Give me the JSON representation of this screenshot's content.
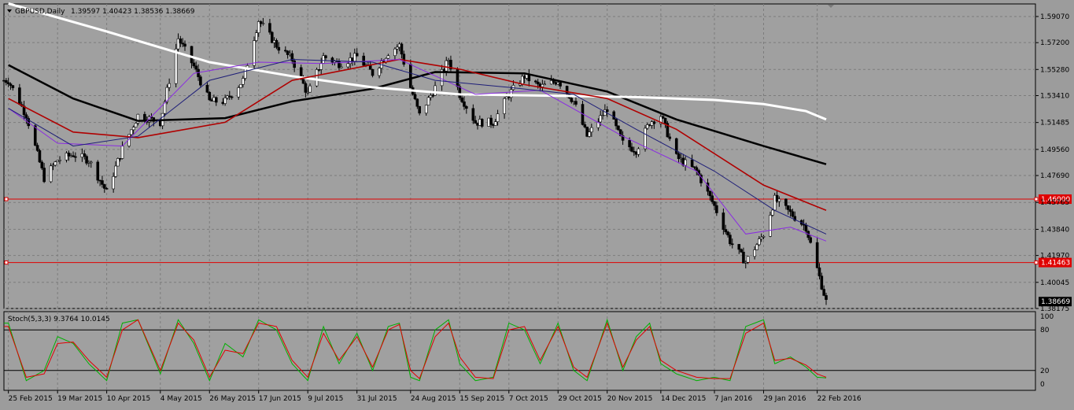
{
  "main_header": {
    "symbol": "GBPUSD,Daily",
    "ohlc": "1.39597 1.40423 1.38536 1.38669"
  },
  "sub_header": {
    "label": "Stoch(5,3,3) 9.3764 10.0145"
  },
  "colors": {
    "background": "#a0a0a0",
    "grid": "#7c7c7c",
    "candle": "#000000",
    "ma_black": "#000000",
    "ma_white": "#ffffff",
    "ma_red": "#b00000",
    "ma_purple": "#8a2be2",
    "ma_blue": "#1e1e78",
    "hline": "#e00000",
    "stoch_main": "#00b000",
    "stoch_signal": "#e00000"
  },
  "chart_data": [
    {
      "type": "candlestick",
      "title": "GBPUSD,Daily",
      "ylim": [
        1.38175,
        1.5997
      ],
      "y_ticks": [
        "1.59070",
        "1.57200",
        "1.55280",
        "1.53410",
        "1.51485",
        "1.49560",
        "1.47690",
        "1.45765",
        "1.43840",
        "1.41970",
        "1.40045",
        "1.38175"
      ],
      "x_ticks": [
        "25 Feb 2015",
        "19 Mar 2015",
        "10 Apr 2015",
        "4 May 2015",
        "26 May 2015",
        "17 Jun 2015",
        "9 Jul 2015",
        "31 Jul 2015",
        "24 Aug 2015",
        "15 Sep 2015",
        "7 Oct 2015",
        "29 Oct 2015",
        "20 Nov 2015",
        "14 Dec 2015",
        "7 Jan 2016",
        "29 Jan 2016",
        "22 Feb 2016"
      ],
      "close_anchors": [
        [
          "25 Feb 2015",
          1.545
        ],
        [
          "5 Mar 2015",
          1.52
        ],
        [
          "13 Mar 2015",
          1.475
        ],
        [
          "19 Mar 2015",
          1.488
        ],
        [
          "26 Mar 2015",
          1.492
        ],
        [
          "2 Apr 2015",
          1.488
        ],
        [
          "10 Apr 2015",
          1.465
        ],
        [
          "17 Apr 2015",
          1.496
        ],
        [
          "24 Apr 2015",
          1.52
        ],
        [
          "4 May 2015",
          1.515
        ],
        [
          "12 May 2015",
          1.575
        ],
        [
          "19 May 2015",
          1.555
        ],
        [
          "26 May 2015",
          1.53
        ],
        [
          "2 Jun 2015",
          1.53
        ],
        [
          "10 Jun 2015",
          1.545
        ],
        [
          "17 Jun 2015",
          1.588
        ],
        [
          "25 Jun 2015",
          1.57
        ],
        [
          "2 Jul 2015",
          1.56
        ],
        [
          "9 Jul 2015",
          1.535
        ],
        [
          "16 Jul 2015",
          1.562
        ],
        [
          "23 Jul 2015",
          1.557
        ],
        [
          "31 Jul 2015",
          1.562
        ],
        [
          "7 Aug 2015",
          1.55
        ],
        [
          "14 Aug 2015",
          1.565
        ],
        [
          "19 Aug 2015",
          1.57
        ],
        [
          "24 Aug 2015",
          1.54
        ],
        [
          "28 Aug 2015",
          1.52
        ],
        [
          "4 Sep 2015",
          1.54
        ],
        [
          "10 Sep 2015",
          1.56
        ],
        [
          "15 Sep 2015",
          1.535
        ],
        [
          "22 Sep 2015",
          1.515
        ],
        [
          "30 Sep 2015",
          1.515
        ],
        [
          "7 Oct 2015",
          1.535
        ],
        [
          "14 Oct 2015",
          1.548
        ],
        [
          "21 Oct 2015",
          1.54
        ],
        [
          "29 Oct 2015",
          1.545
        ],
        [
          "5 Nov 2015",
          1.53
        ],
        [
          "11 Nov 2015",
          1.505
        ],
        [
          "20 Nov 2015",
          1.525
        ],
        [
          "27 Nov 2015",
          1.5
        ],
        [
          "3 Dec 2015",
          1.495
        ],
        [
          "9 Dec 2015",
          1.515
        ],
        [
          "14 Dec 2015",
          1.52
        ],
        [
          "21 Dec 2015",
          1.49
        ],
        [
          "30 Dec 2015",
          1.48
        ],
        [
          "7 Jan 2016",
          1.455
        ],
        [
          "14 Jan 2016",
          1.43
        ],
        [
          "21 Jan 2016",
          1.415
        ],
        [
          "29 Jan 2016",
          1.435
        ],
        [
          "3 Feb 2016",
          1.46
        ],
        [
          "10 Feb 2016",
          1.45
        ],
        [
          "17 Feb 2016",
          1.44
        ],
        [
          "22 Feb 2016",
          1.41
        ],
        [
          "26 Feb 2016",
          1.3867
        ]
      ],
      "lines": [
        {
          "name": "MA black",
          "color": "#000000",
          "points": [
            [
              "25 Feb 2015",
              1.556
            ],
            [
              "26 Mar 2015",
              1.532
            ],
            [
              "24 Apr 2015",
              1.516
            ],
            [
              "2 Jun 2015",
              1.518
            ],
            [
              "2 Jul 2015",
              1.53
            ],
            [
              "7 Aug 2015",
              1.539
            ],
            [
              "4 Sep 2015",
              1.551
            ],
            [
              "14 Oct 2015",
              1.55
            ],
            [
              "20 Nov 2015",
              1.537
            ],
            [
              "21 Dec 2015",
              1.517
            ],
            [
              "29 Jan 2016",
              1.498
            ],
            [
              "26 Feb 2016",
              1.485
            ]
          ]
        },
        {
          "name": "MA white",
          "color": "#ffffff",
          "points": [
            [
              "25 Feb 2015",
              1.6
            ],
            [
              "10 Apr 2015",
              1.58
            ],
            [
              "26 May 2015",
              1.558
            ],
            [
              "2 Jul 2015",
              1.548
            ],
            [
              "7 Aug 2015",
              1.54
            ],
            [
              "15 Sep 2015",
              1.535
            ],
            [
              "29 Oct 2015",
              1.534
            ],
            [
              "3 Dec 2015",
              1.533
            ],
            [
              "7 Jan 2016",
              1.531
            ],
            [
              "29 Jan 2016",
              1.528
            ],
            [
              "17 Feb 2016",
              1.523
            ],
            [
              "26 Feb 2016",
              1.517
            ]
          ]
        },
        {
          "name": "MA red",
          "color": "#b00000",
          "points": [
            [
              "25 Feb 2015",
              1.532
            ],
            [
              "26 Mar 2015",
              1.508
            ],
            [
              "24 Apr 2015",
              1.504
            ],
            [
              "2 Jun 2015",
              1.515
            ],
            [
              "2 Jul 2015",
              1.545
            ],
            [
              "19 Aug 2015",
              1.56
            ],
            [
              "15 Sep 2015",
              1.553
            ],
            [
              "14 Oct 2015",
              1.542
            ],
            [
              "20 Nov 2015",
              1.532
            ],
            [
              "21 Dec 2015",
              1.51
            ],
            [
              "29 Jan 2016",
              1.47
            ],
            [
              "26 Feb 2016",
              1.452
            ]
          ]
        },
        {
          "name": "MA purple",
          "color": "#8a2be2",
          "points": [
            [
              "25 Feb 2015",
              1.525
            ],
            [
              "19 Mar 2015",
              1.5
            ],
            [
              "17 Apr 2015",
              1.498
            ],
            [
              "19 May 2015",
              1.55
            ],
            [
              "17 Jun 2015",
              1.558
            ],
            [
              "16 Jul 2015",
              1.557
            ],
            [
              "19 Aug 2015",
              1.56
            ],
            [
              "22 Sep 2015",
              1.535
            ],
            [
              "21 Oct 2015",
              1.538
            ],
            [
              "27 Nov 2015",
              1.505
            ],
            [
              "30 Dec 2015",
              1.48
            ],
            [
              "21 Jan 2016",
              1.435
            ],
            [
              "10 Feb 2016",
              1.44
            ],
            [
              "26 Feb 2016",
              1.43
            ]
          ]
        },
        {
          "name": "MA blue",
          "color": "#1e1e78",
          "points": [
            [
              "25 Feb 2015",
              1.525
            ],
            [
              "26 Mar 2015",
              1.498
            ],
            [
              "24 Apr 2015",
              1.505
            ],
            [
              "26 May 2015",
              1.545
            ],
            [
              "2 Jul 2015",
              1.56
            ],
            [
              "7 Aug 2015",
              1.558
            ],
            [
              "4 Sep 2015",
              1.545
            ],
            [
              "7 Oct 2015",
              1.54
            ],
            [
              "5 Nov 2015",
              1.535
            ],
            [
              "3 Dec 2015",
              1.51
            ],
            [
              "7 Jan 2016",
              1.48
            ],
            [
              "3 Feb 2016",
              1.452
            ],
            [
              "26 Feb 2016",
              1.435
            ]
          ]
        }
      ],
      "hlines": [
        {
          "label": "1.46000",
          "value": 1.46,
          "color": "#e00000"
        },
        {
          "label": "1.41463",
          "value": 1.41463,
          "color": "#e00000"
        }
      ],
      "current_price": "1.38669"
    },
    {
      "type": "line",
      "title": "Stoch(5,3,3) 9.3764 10.0145",
      "ylim": [
        0,
        100
      ],
      "y_ticks": [
        "100",
        "80",
        "20",
        "0"
      ],
      "levels": [
        80,
        20
      ],
      "series": [
        {
          "name": "Main",
          "color": "#00b000",
          "anchors": [
            [
              "25 Feb 2015",
              90
            ],
            [
              "5 Mar 2015",
              5
            ],
            [
              "13 Mar 2015",
              20
            ],
            [
              "19 Mar 2015",
              70
            ],
            [
              "26 Mar 2015",
              60
            ],
            [
              "2 Apr 2015",
              30
            ],
            [
              "10 Apr 2015",
              5
            ],
            [
              "17 Apr 2015",
              90
            ],
            [
              "24 Apr 2015",
              95
            ],
            [
              "4 May 2015",
              15
            ],
            [
              "12 May 2015",
              95
            ],
            [
              "19 May 2015",
              60
            ],
            [
              "26 May 2015",
              5
            ],
            [
              "2 Jun 2015",
              60
            ],
            [
              "10 Jun 2015",
              40
            ],
            [
              "17 Jun 2015",
              95
            ],
            [
              "25 Jun 2015",
              80
            ],
            [
              "2 Jul 2015",
              30
            ],
            [
              "9 Jul 2015",
              5
            ],
            [
              "16 Jul 2015",
              85
            ],
            [
              "23 Jul 2015",
              30
            ],
            [
              "31 Jul 2015",
              75
            ],
            [
              "7 Aug 2015",
              20
            ],
            [
              "14 Aug 2015",
              85
            ],
            [
              "19 Aug 2015",
              90
            ],
            [
              "24 Aug 2015",
              10
            ],
            [
              "28 Aug 2015",
              5
            ],
            [
              "4 Sep 2015",
              80
            ],
            [
              "10 Sep 2015",
              95
            ],
            [
              "15 Sep 2015",
              30
            ],
            [
              "22 Sep 2015",
              5
            ],
            [
              "30 Sep 2015",
              10
            ],
            [
              "7 Oct 2015",
              90
            ],
            [
              "14 Oct 2015",
              80
            ],
            [
              "21 Oct 2015",
              30
            ],
            [
              "29 Oct 2015",
              90
            ],
            [
              "5 Nov 2015",
              20
            ],
            [
              "11 Nov 2015",
              5
            ],
            [
              "20 Nov 2015",
              95
            ],
            [
              "27 Nov 2015",
              20
            ],
            [
              "3 Dec 2015",
              70
            ],
            [
              "9 Dec 2015",
              90
            ],
            [
              "14 Dec 2015",
              30
            ],
            [
              "21 Dec 2015",
              15
            ],
            [
              "30 Dec 2015",
              5
            ],
            [
              "7 Jan 2016",
              10
            ],
            [
              "14 Jan 2016",
              5
            ],
            [
              "21 Jan 2016",
              85
            ],
            [
              "29 Jan 2016",
              95
            ],
            [
              "3 Feb 2016",
              30
            ],
            [
              "10 Feb 2016",
              40
            ],
            [
              "17 Feb 2016",
              25
            ],
            [
              "22 Feb 2016",
              10
            ],
            [
              "26 Feb 2016",
              9
            ]
          ]
        },
        {
          "name": "Signal",
          "color": "#e00000",
          "anchors": [
            [
              "25 Feb 2015",
              85
            ],
            [
              "5 Mar 2015",
              10
            ],
            [
              "13 Mar 2015",
              15
            ],
            [
              "19 Mar 2015",
              60
            ],
            [
              "26 Mar 2015",
              62
            ],
            [
              "2 Apr 2015",
              35
            ],
            [
              "10 Apr 2015",
              10
            ],
            [
              "17 Apr 2015",
              80
            ],
            [
              "24 Apr 2015",
              95
            ],
            [
              "4 May 2015",
              20
            ],
            [
              "12 May 2015",
              90
            ],
            [
              "19 May 2015",
              65
            ],
            [
              "26 May 2015",
              10
            ],
            [
              "2 Jun 2015",
              50
            ],
            [
              "10 Jun 2015",
              45
            ],
            [
              "17 Jun 2015",
              90
            ],
            [
              "25 Jun 2015",
              85
            ],
            [
              "2 Jul 2015",
              35
            ],
            [
              "9 Jul 2015",
              10
            ],
            [
              "16 Jul 2015",
              75
            ],
            [
              "23 Jul 2015",
              35
            ],
            [
              "31 Jul 2015",
              70
            ],
            [
              "7 Aug 2015",
              25
            ],
            [
              "14 Aug 2015",
              80
            ],
            [
              "19 Aug 2015",
              88
            ],
            [
              "24 Aug 2015",
              20
            ],
            [
              "28 Aug 2015",
              8
            ],
            [
              "4 Sep 2015",
              70
            ],
            [
              "10 Sep 2015",
              90
            ],
            [
              "15 Sep 2015",
              40
            ],
            [
              "22 Sep 2015",
              10
            ],
            [
              "30 Sep 2015",
              8
            ],
            [
              "7 Oct 2015",
              80
            ],
            [
              "14 Oct 2015",
              85
            ],
            [
              "21 Oct 2015",
              35
            ],
            [
              "29 Oct 2015",
              85
            ],
            [
              "5 Nov 2015",
              25
            ],
            [
              "11 Nov 2015",
              10
            ],
            [
              "20 Nov 2015",
              90
            ],
            [
              "27 Nov 2015",
              25
            ],
            [
              "3 Dec 2015",
              65
            ],
            [
              "9 Dec 2015",
              85
            ],
            [
              "14 Dec 2015",
              35
            ],
            [
              "21 Dec 2015",
              20
            ],
            [
              "30 Dec 2015",
              10
            ],
            [
              "7 Jan 2016",
              8
            ],
            [
              "14 Jan 2016",
              8
            ],
            [
              "21 Jan 2016",
              75
            ],
            [
              "29 Jan 2016",
              90
            ],
            [
              "3 Feb 2016",
              35
            ],
            [
              "10 Feb 2016",
              38
            ],
            [
              "17 Feb 2016",
              28
            ],
            [
              "22 Feb 2016",
              15
            ],
            [
              "26 Feb 2016",
              10
            ]
          ]
        }
      ]
    }
  ]
}
